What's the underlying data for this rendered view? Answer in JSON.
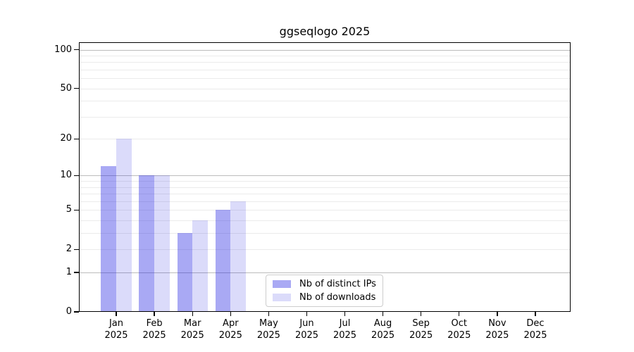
{
  "figure": {
    "background": "#ffffff"
  },
  "chart_data": {
    "type": "bar",
    "title": "ggseqlogo 2025",
    "xlabel": "",
    "ylabel": "",
    "yscale": "log1p",
    "ylim": [
      0,
      114
    ],
    "yticks": [
      100,
      50,
      20,
      10,
      5,
      2,
      1,
      0
    ],
    "y_major_gridlines": [
      1,
      10,
      100
    ],
    "y_minor_gridlines": [
      2,
      3,
      4,
      5,
      6,
      7,
      8,
      9,
      20,
      30,
      40,
      50,
      60,
      70,
      80,
      90
    ],
    "grid": true,
    "categories": [
      "Jan",
      "Feb",
      "Mar",
      "Apr",
      "May",
      "Jun",
      "Jul",
      "Aug",
      "Sep",
      "Oct",
      "Nov",
      "Dec"
    ],
    "year": "2025",
    "series": [
      {
        "name": "Nb of distinct IPs",
        "color": "rgba(30, 30, 225, 0.38)",
        "values": [
          12,
          10,
          3,
          5,
          0,
          0,
          0,
          0,
          0,
          0,
          0,
          0
        ]
      },
      {
        "name": "Nb of downloads",
        "color": "rgba(30, 30, 225, 0.16)",
        "values": [
          20,
          10,
          4,
          6,
          0,
          0,
          0,
          0,
          0,
          0,
          0,
          0
        ]
      }
    ],
    "legend_position": "lower center"
  },
  "colors": {
    "spine": "#000000",
    "grid_major": "#bcbcbc",
    "grid_minor": "#ebebeb",
    "text": "#000000",
    "legend_border": "#cccccc",
    "legend_background": "#ffffff"
  }
}
